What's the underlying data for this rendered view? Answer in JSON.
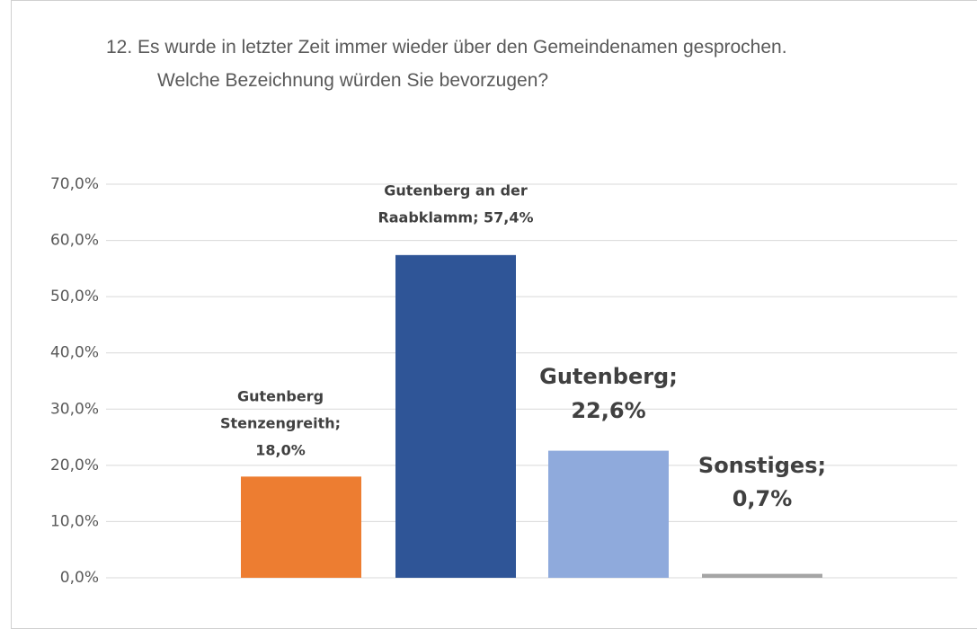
{
  "chart_data": {
    "type": "bar",
    "title": "12. Es wurde in letzter Zeit immer wieder über den Gemeindenamen gesprochen. Welche Bezeichnung würden Sie bevorzugen?",
    "values": [
      18.0,
      57.4,
      22.6,
      0.7
    ],
    "value_labels": [
      "Gutenberg Stenzengreith; 18,0%",
      "Gutenberg an der Raabklamm; 57,4%",
      "Gutenberg; 22,6%",
      "Sonstiges; 0,7%"
    ],
    "colors": [
      "#ed7d31",
      "#2f5597",
      "#8faadc",
      "#a5a5a5"
    ],
    "ylim": [
      0,
      70
    ],
    "yticks": [
      {
        "value": 0,
        "label": "0,0%"
      },
      {
        "value": 10,
        "label": "10,0%"
      },
      {
        "value": 20,
        "label": "20,0%"
      },
      {
        "value": 30,
        "label": "30,0%"
      },
      {
        "value": 40,
        "label": "40,0%"
      },
      {
        "value": 50,
        "label": "50,0%"
      },
      {
        "value": 60,
        "label": "60,0%"
      },
      {
        "value": 70,
        "label": "70,0%"
      }
    ],
    "grid": true
  }
}
